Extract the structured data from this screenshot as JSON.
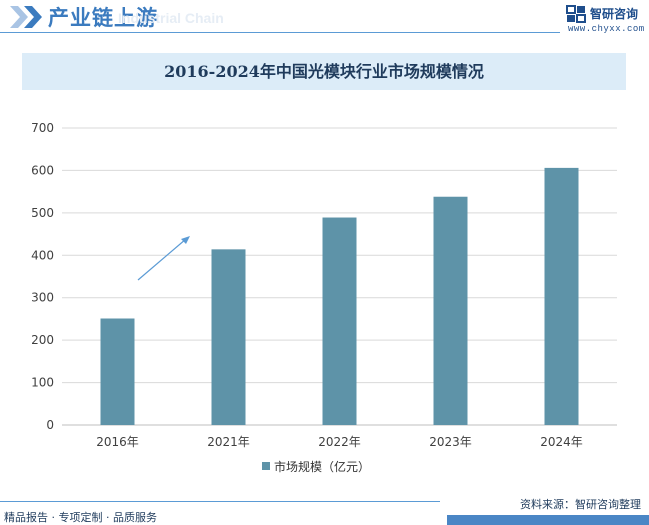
{
  "header": {
    "title": "产业链上游",
    "ghost_text": "Industrial Chain",
    "logo_name": "智研咨询",
    "logo_url": "www.chyxx.com"
  },
  "chart_data": {
    "type": "bar",
    "title": "2016-2024年中国光模块行业市场规模情况",
    "categories": [
      "2016年",
      "2021年",
      "2022年",
      "2023年",
      "2024年"
    ],
    "series": [
      {
        "name": "市场规模（亿元）",
        "values": [
          251,
          414,
          489,
          538,
          606
        ],
        "color": "#5e93a8"
      }
    ],
    "yticks": [
      0,
      100,
      200,
      300,
      400,
      500,
      600,
      700
    ],
    "ylim": [
      0,
      700
    ],
    "grid": true,
    "legend": "bottom-center"
  },
  "footer": {
    "left": "精品报告 · 专项定制 · 品质服务",
    "source": "资料来源：智研咨询整理"
  },
  "colors": {
    "brand": "#3b7bbf",
    "bar": "#5e93a8",
    "title_band": "#dcecf8",
    "grid": "#d9d9d9"
  }
}
